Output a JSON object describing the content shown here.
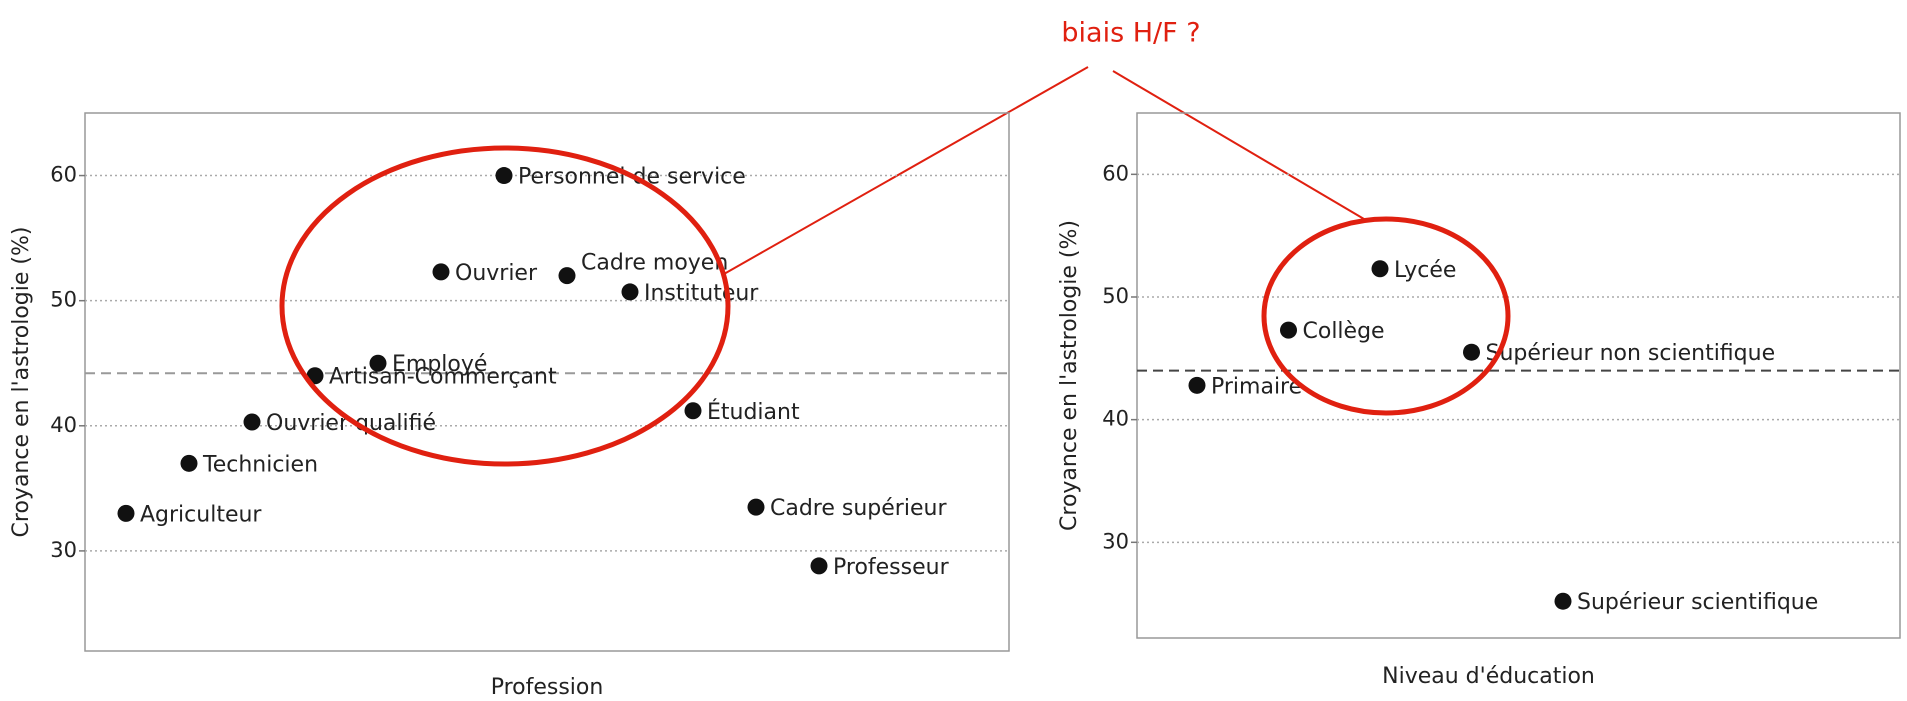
{
  "annotation": "biais H/F ?",
  "chart_data": [
    {
      "type": "dot",
      "ylabel": "Croyance en l'astrologie (%)",
      "xlabel": "Profession",
      "categories": [
        "Agriculteur",
        "Technicien",
        "Ouvrier qualifié",
        "Artisan-Commerçant",
        "Employé",
        "Ouvrier",
        "Personnel de service",
        "Cadre moyen",
        "Instituteur",
        "Étudiant",
        "Cadre supérieur",
        "Professeur"
      ],
      "values": [
        33,
        37,
        40.3,
        44,
        45,
        52.3,
        60,
        52,
        50.7,
        41.2,
        33.5,
        28.8
      ],
      "color": "#111111",
      "hline": 44.2,
      "ylim": [
        22,
        65
      ],
      "yticks": [
        30,
        40,
        50,
        60
      ],
      "grid": true
    },
    {
      "type": "dot",
      "ylabel": "Croyance en l'astrologie (%)",
      "xlabel": "Niveau d'éducation",
      "categories": [
        "Primaire",
        "Collège",
        "Lycée",
        "Supérieur non scientifique",
        "Supérieur scientifique"
      ],
      "values": [
        42.8,
        47.3,
        52.3,
        45.5,
        25.2
      ],
      "color": "#111111",
      "hline": 44,
      "ylim": [
        22.2,
        65
      ],
      "yticks": [
        30,
        40,
        50,
        60
      ],
      "grid": true
    }
  ]
}
